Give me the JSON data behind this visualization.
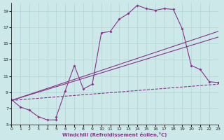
{
  "xlabel": "Windchill (Refroidissement éolien,°C)",
  "bg_color": "#cce8e8",
  "line_color": "#883388",
  "xlim": [
    0,
    23
  ],
  "ylim": [
    5,
    20
  ],
  "yticks": [
    5,
    7,
    9,
    11,
    13,
    15,
    17,
    19
  ],
  "xticks": [
    0,
    1,
    2,
    3,
    4,
    5,
    6,
    7,
    8,
    9,
    10,
    11,
    12,
    13,
    14,
    15,
    16,
    17,
    18,
    19,
    20,
    21,
    22,
    23
  ],
  "grid_color": "#b0d4d4",
  "main_x": [
    0,
    1,
    2,
    3,
    4,
    5,
    5,
    6,
    7,
    8,
    9,
    10,
    11,
    12,
    13,
    14,
    15,
    16,
    17,
    18,
    19,
    20,
    21,
    22,
    23
  ],
  "main_y": [
    8.1,
    7.2,
    6.8,
    6.0,
    5.6,
    5.6,
    6.0,
    9.2,
    12.3,
    9.4,
    10.0,
    16.3,
    16.5,
    18.0,
    18.7,
    19.7,
    19.3,
    19.1,
    19.3,
    19.2,
    16.8,
    12.3,
    11.8,
    10.3,
    10.2
  ],
  "line1_x": [
    0,
    23
  ],
  "line1_y": [
    8.0,
    10.0
  ],
  "line2_x": [
    0,
    23
  ],
  "line2_y": [
    8.0,
    15.8
  ],
  "line3_x": [
    0,
    23
  ],
  "line3_y": [
    8.0,
    16.5
  ]
}
